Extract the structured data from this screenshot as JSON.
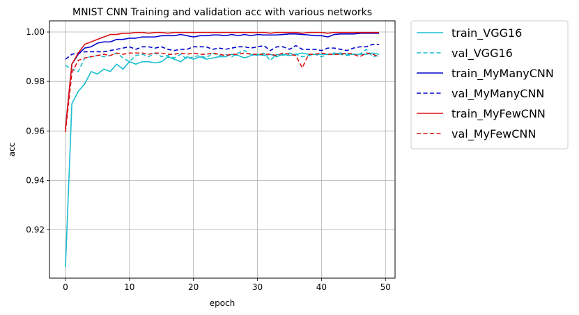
{
  "chart_data": {
    "type": "line",
    "title": "MNIST CNN Training and validation acc with various networks",
    "xlabel": "epoch",
    "ylabel": "acc",
    "xlim": [
      -2.5,
      51.5
    ],
    "ylim": [
      0.9005,
      1.0045
    ],
    "xticks": [
      0,
      10,
      20,
      30,
      40,
      50
    ],
    "xtick_labels": [
      "0",
      "10",
      "20",
      "30",
      "40",
      "50"
    ],
    "yticks": [
      0.92,
      0.94,
      0.96,
      0.98,
      1.0
    ],
    "ytick_labels": [
      "0.92",
      "0.94",
      "0.96",
      "0.98",
      "1.00"
    ],
    "grid": true,
    "legend_position": "outside-right-top",
    "x": [
      0,
      1,
      2,
      3,
      4,
      5,
      6,
      7,
      8,
      9,
      10,
      11,
      12,
      13,
      14,
      15,
      16,
      17,
      18,
      19,
      20,
      21,
      22,
      23,
      24,
      25,
      26,
      27,
      28,
      29,
      30,
      31,
      32,
      33,
      34,
      35,
      36,
      37,
      38,
      39,
      40,
      41,
      42,
      43,
      44,
      45,
      46,
      47,
      48,
      49
    ],
    "series": [
      {
        "name": "train_VGG16",
        "color": "#17becf",
        "dash": "solid",
        "values": [
          0.905,
          0.971,
          0.976,
          0.979,
          0.984,
          0.983,
          0.985,
          0.984,
          0.987,
          0.985,
          0.988,
          0.987,
          0.988,
          0.988,
          0.9875,
          0.988,
          0.99,
          0.989,
          0.988,
          0.99,
          0.989,
          0.99,
          0.989,
          0.9895,
          0.99,
          0.99,
          0.991,
          0.9905,
          0.9895,
          0.9905,
          0.991,
          0.9905,
          0.991,
          0.99,
          0.991,
          0.9905,
          0.991,
          0.9915,
          0.991,
          0.991,
          0.991,
          0.991,
          0.991,
          0.9915,
          0.991,
          0.991,
          0.991,
          0.991,
          0.9915,
          0.991
        ]
      },
      {
        "name": "val_VGG16",
        "color": "#17becf",
        "dash": "dashed",
        "values": [
          0.9865,
          0.985,
          0.984,
          0.9895,
          0.99,
          0.9905,
          0.99,
          0.9905,
          0.9915,
          0.9895,
          0.988,
          0.9905,
          0.991,
          0.99,
          0.9915,
          0.99,
          0.9905,
          0.9895,
          0.991,
          0.989,
          0.99,
          0.9905,
          0.9895,
          0.9915,
          0.9905,
          0.991,
          0.99,
          0.9915,
          0.9925,
          0.991,
          0.9905,
          0.9915,
          0.9885,
          0.991,
          0.9905,
          0.9915,
          0.991,
          0.99,
          0.9905,
          0.991,
          0.99,
          0.991,
          0.9915,
          0.991,
          0.9905,
          0.991,
          0.991,
          0.993,
          0.99,
          0.9905
        ]
      },
      {
        "name": "train_MyManyCNN",
        "color": "#0000cc",
        "dash": "solid",
        "values": [
          0.961,
          0.987,
          0.991,
          0.9935,
          0.994,
          0.9955,
          0.996,
          0.996,
          0.997,
          0.997,
          0.9975,
          0.9975,
          0.998,
          0.998,
          0.998,
          0.9985,
          0.9985,
          0.9985,
          0.999,
          0.9985,
          0.998,
          0.9985,
          0.9985,
          0.9988,
          0.9988,
          0.9985,
          0.999,
          0.9985,
          0.999,
          0.9985,
          0.999,
          0.9988,
          0.9988,
          0.9988,
          0.999,
          0.9992,
          0.9992,
          0.999,
          0.9988,
          0.9985,
          0.9985,
          0.998,
          0.999,
          0.9992,
          0.9992,
          0.9992,
          0.9995,
          0.9995,
          0.9995,
          0.9995
        ]
      },
      {
        "name": "val_MyManyCNN",
        "color": "#0000cc",
        "dash": "dashed",
        "values": [
          0.989,
          0.991,
          0.9915,
          0.992,
          0.992,
          0.992,
          0.992,
          0.9925,
          0.993,
          0.9935,
          0.994,
          0.993,
          0.994,
          0.994,
          0.9935,
          0.994,
          0.993,
          0.9925,
          0.993,
          0.993,
          0.994,
          0.994,
          0.994,
          0.993,
          0.9935,
          0.993,
          0.9935,
          0.994,
          0.994,
          0.9935,
          0.994,
          0.9945,
          0.9925,
          0.994,
          0.994,
          0.993,
          0.9945,
          0.993,
          0.993,
          0.993,
          0.9925,
          0.9935,
          0.9935,
          0.993,
          0.9925,
          0.9935,
          0.994,
          0.994,
          0.995,
          0.995
        ]
      },
      {
        "name": "train_MyFewCNN",
        "color": "#dd1111",
        "dash": "solid",
        "values": [
          0.961,
          0.987,
          0.9915,
          0.995,
          0.996,
          0.997,
          0.998,
          0.999,
          0.999,
          0.9995,
          0.9995,
          0.9998,
          0.9998,
          0.9995,
          0.9998,
          0.9998,
          0.9995,
          0.9998,
          0.9998,
          0.9998,
          0.9998,
          0.9998,
          0.9998,
          0.9998,
          0.9998,
          0.9998,
          0.9998,
          0.9998,
          0.9998,
          0.9998,
          0.9998,
          0.9998,
          0.9995,
          0.9998,
          0.9998,
          0.9998,
          0.9998,
          0.9995,
          0.9998,
          0.9998,
          0.9998,
          0.9995,
          0.9998,
          0.9998,
          0.9998,
          0.9998,
          0.9998,
          0.9998,
          0.9998,
          0.9998
        ]
      },
      {
        "name": "val_MyFewCNN",
        "color": "#dd1111",
        "dash": "dashed",
        "values": [
          0.9595,
          0.9835,
          0.9885,
          0.9895,
          0.99,
          0.9905,
          0.991,
          0.9905,
          0.9915,
          0.991,
          0.9915,
          0.9915,
          0.9915,
          0.991,
          0.9915,
          0.9915,
          0.991,
          0.991,
          0.9915,
          0.991,
          0.9915,
          0.991,
          0.991,
          0.9915,
          0.991,
          0.9905,
          0.991,
          0.991,
          0.9915,
          0.991,
          0.991,
          0.991,
          0.991,
          0.9905,
          0.9915,
          0.991,
          0.9905,
          0.9855,
          0.991,
          0.991,
          0.9915,
          0.991,
          0.991,
          0.991,
          0.9915,
          0.991,
          0.99,
          0.9915,
          0.991,
          0.99
        ]
      }
    ]
  }
}
